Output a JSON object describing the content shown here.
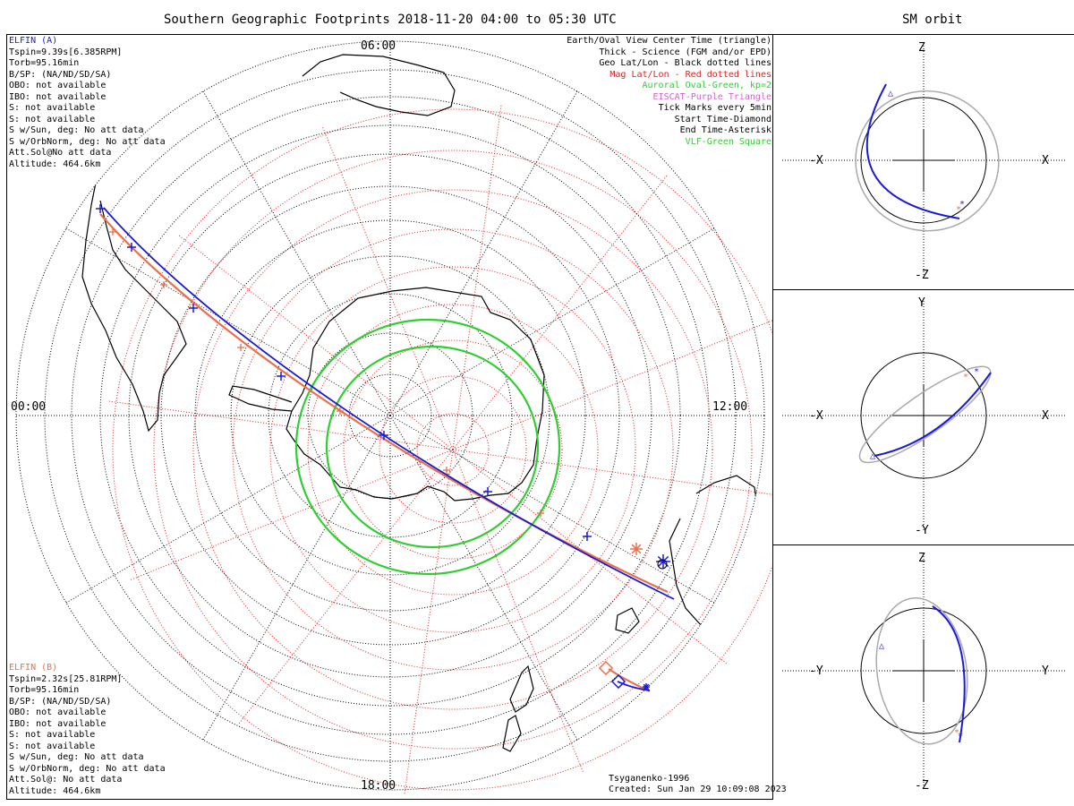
{
  "title": "Southern Geographic Footprints 2018-11-20 04:00 to 05:30 UTC",
  "sm_title": "SM orbit",
  "colors": {
    "elfin_a": "#1a1ad6",
    "elfin_b": "#e8704a",
    "mag_grid": "#e02020",
    "oval": "#33cc33",
    "eiscat": "#cc66cc",
    "orbit_gray": "#a9a9a9"
  },
  "map": {
    "time_labels": {
      "top": "06:00",
      "left": "00:00",
      "right": "12:00",
      "bottom": "18:00"
    },
    "elfin_a_info": [
      "ELFIN (A)",
      "Tspin=9.39s[6.385RPM]",
      "Torb=95.16min",
      "B/SP: (NA/ND/SD/SA)",
      "OBO: not available",
      "IBO: not available",
      "S: not available",
      "S: not available",
      "S w/Sun, deg: No att data",
      "S w/OrbNorm, deg: No att data",
      "Att.Sol@No att data",
      "Altitude: 464.6km"
    ],
    "elfin_b_info": [
      "ELFIN (B)",
      "Tspin=2.32s[25.81RPM]",
      "Torb=95.16min",
      "B/SP: (NA/ND/SD/SA)",
      "OBO: not available",
      "IBO: not available",
      "S: not available",
      "S: not available",
      "S w/Sun, deg: No att data",
      "S w/OrbNorm, deg: No att data",
      "Att.Sol@: No att data",
      "Altitude: 464.6km"
    ],
    "legend": [
      {
        "text": "Earth/Oval View Center Time (triangle)",
        "color": "#000000"
      },
      {
        "text": "Thick - Science (FGM and/or EPD)",
        "color": "#000000"
      },
      {
        "text": "Geo Lat/Lon - Black dotted lines",
        "color": "#000000"
      },
      {
        "text": "Mag Lat/Lon - Red dotted lines",
        "color": "#e02020"
      },
      {
        "text": "Auroral Oval-Green, kp=2",
        "color": "#33cc33"
      },
      {
        "text": "EISCAT-Purple Triangle",
        "color": "#cc66cc"
      },
      {
        "text": "Tick Marks every 5min",
        "color": "#000000"
      },
      {
        "text": "Start Time-Diamond",
        "color": "#000000"
      },
      {
        "text": "End Time-Asterisk",
        "color": "#000000"
      },
      {
        "text": "VLF-Green Square",
        "color": "#33cc33"
      }
    ],
    "model": "Tsyganenko-1996",
    "created": "Created: Sun Jan 29 10:09:08 2023"
  },
  "sm_panels": [
    {
      "top": "Z",
      "bottom": "-Z",
      "left": "-X",
      "right": "X"
    },
    {
      "top": "Y",
      "bottom": "-Y",
      "left": "-X",
      "right": "X"
    },
    {
      "top": "Z",
      "bottom": "-Z",
      "left": "-Y",
      "right": "Y"
    }
  ]
}
